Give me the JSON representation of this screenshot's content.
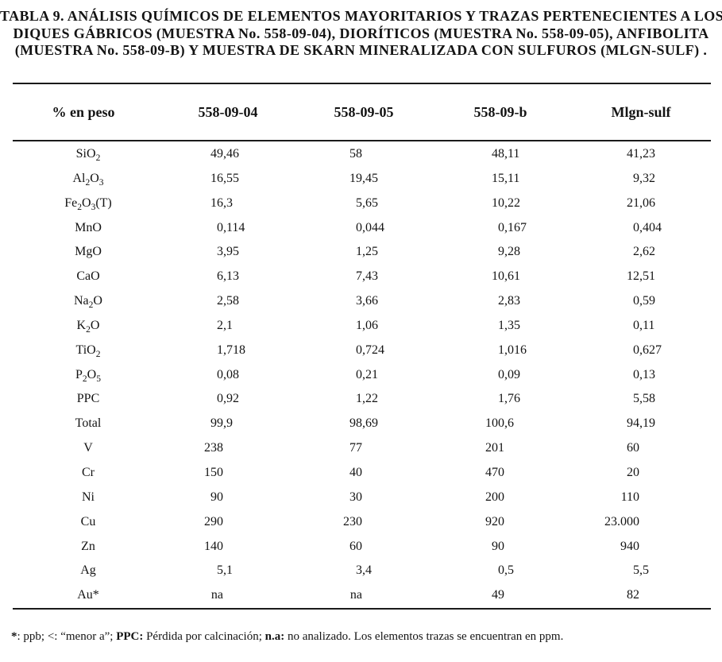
{
  "title": {
    "lines": [
      "TABLA 9. ANÁLISIS QUÍMICOS DE ELEMENTOS MAYORITARIOS Y TRAZAS PERTENECIENTES A LOS",
      "DIQUES GÁBRICOS (MUESTRA No. 558-09-04), DIORÍTICOS (MUESTRA No. 558-09-05), ANFIBOLITA",
      "(MUESTRA No. 558-09-B) Y MUESTRA DE SKARN MINERALIZADA CON SULFUROS (MLGN-SULF) ."
    ]
  },
  "table": {
    "headers": [
      "% en peso",
      "558-09-04",
      "558-09-05",
      "558-09-b",
      "Mlgn-sulf"
    ],
    "subscript_convention": "underscore-delimited tokens in labels are subscripts, e.g. SiO_2_ renders as SiO2 with subscript 2",
    "rows": [
      {
        "label": "SiO_2_",
        "values": [
          "49,46",
          "58",
          "48,11",
          "41,23"
        ]
      },
      {
        "label": "Al_2_O_3_",
        "values": [
          "16,55",
          "19,45",
          "15,11",
          "9,32"
        ]
      },
      {
        "label": "Fe_2_O_3_(T)",
        "values": [
          "16,3",
          "5,65",
          "10,22",
          "21,06"
        ]
      },
      {
        "label": "MnO",
        "values": [
          "0,114",
          "0,044",
          "0,167",
          "0,404"
        ]
      },
      {
        "label": "MgO",
        "values": [
          "3,95",
          "1,25",
          "9,28",
          "2,62"
        ]
      },
      {
        "label": "CaO",
        "values": [
          "6,13",
          "7,43",
          "10,61",
          "12,51"
        ]
      },
      {
        "label": "Na_2_O",
        "values": [
          "2,58",
          "3,66",
          "2,83",
          "0,59"
        ]
      },
      {
        "label": "K_2_O",
        "values": [
          "2,1",
          "1,06",
          "1,35",
          "0,11"
        ]
      },
      {
        "label": "TiO_2_",
        "values": [
          "1,718",
          "0,724",
          "1,016",
          "0,627"
        ]
      },
      {
        "label": "P_2_O_5_",
        "values": [
          "0,08",
          "0,21",
          "0,09",
          "0,13"
        ]
      },
      {
        "label": "PPC",
        "values": [
          "0,92",
          "1,22",
          "1,76",
          "5,58"
        ]
      },
      {
        "label": "Total",
        "values": [
          "99,9",
          "98,69",
          "100,6",
          "94,19"
        ]
      },
      {
        "label": "V",
        "values": [
          "238",
          "77",
          "201",
          "60"
        ]
      },
      {
        "label": "Cr",
        "values": [
          "150",
          "40",
          "470",
          "20"
        ]
      },
      {
        "label": "Ni",
        "values": [
          "90",
          "30",
          "200",
          "110"
        ]
      },
      {
        "label": "Cu",
        "values": [
          "290",
          "230",
          "920",
          "23.000"
        ]
      },
      {
        "label": "Zn",
        "values": [
          "140",
          "60",
          "90",
          "940"
        ]
      },
      {
        "label": "Ag",
        "values": [
          "5,1",
          "3,4",
          "0,5",
          "5,5"
        ]
      },
      {
        "label": "Au*",
        "values": [
          "na",
          "na",
          "49",
          "82"
        ]
      }
    ]
  },
  "footnote": {
    "segments": [
      {
        "text": "*",
        "bold": true
      },
      {
        "text": ": ppb;  <: “menor a”; ",
        "bold": false
      },
      {
        "text": "PPC:",
        "bold": true
      },
      {
        "text": " Pérdida por calcinación; ",
        "bold": false
      },
      {
        "text": "n.a:",
        "bold": true
      },
      {
        "text": " no analizado. Los elementos trazas se encuentran en ppm.",
        "bold": false
      }
    ]
  }
}
